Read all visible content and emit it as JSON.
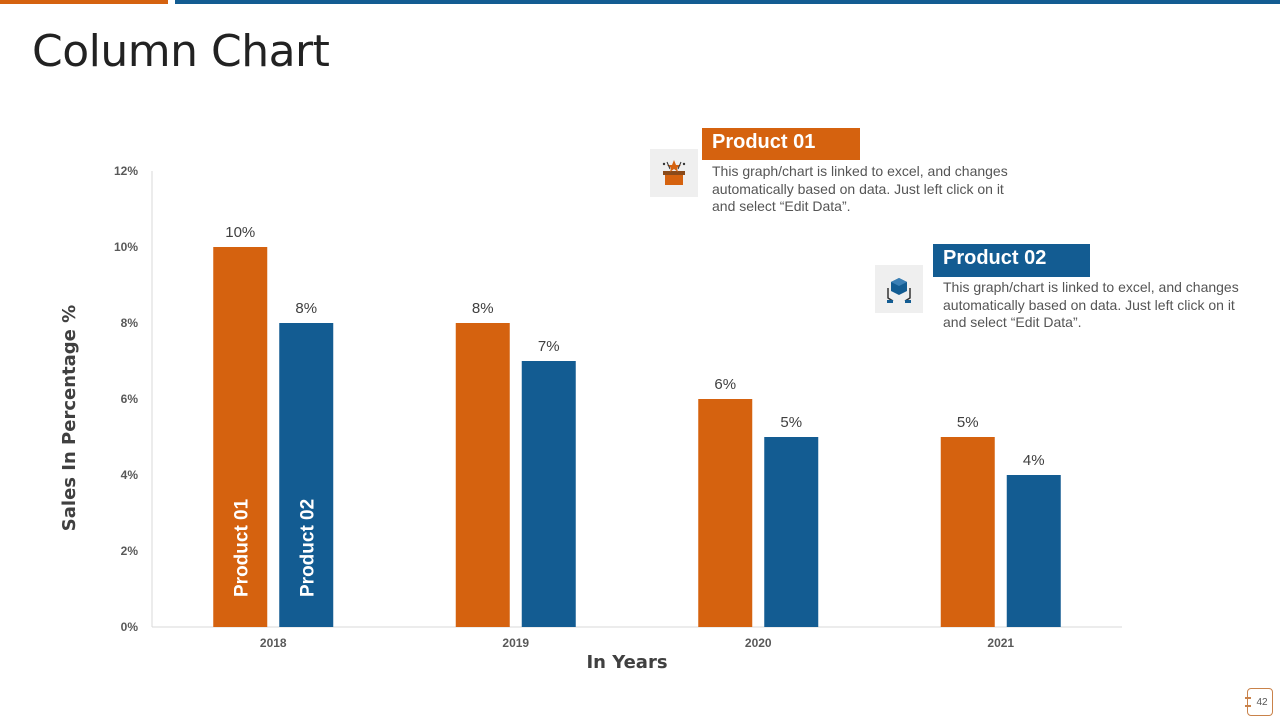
{
  "header": {
    "title": "Column Chart"
  },
  "colors": {
    "product01": "#d5620f",
    "product02": "#135c92",
    "axis": "#d9d9d9",
    "tick_text": "#595959"
  },
  "callouts": [
    {
      "title": "Product 01",
      "icon": "gift-box-icon",
      "text": "This graph/chart is linked to excel, and changes automatically based on data. Just left click on it and select “Edit Data”."
    },
    {
      "title": "Product 02",
      "icon": "hands-holding-box-icon",
      "text": "This graph/chart is linked to excel, and changes automatically based on data. Just left click on it and select “Edit Data”."
    }
  ],
  "page_number": "42",
  "chart_data": {
    "type": "bar",
    "title": "",
    "xlabel": "In Years",
    "ylabel": "Sales In Percentage %",
    "categories": [
      "2018",
      "2019",
      "2020",
      "2021"
    ],
    "series": [
      {
        "name": "Product 01",
        "values": [
          10,
          8,
          6,
          5
        ],
        "labels": [
          "10%",
          "8%",
          "6%",
          "5%"
        ]
      },
      {
        "name": "Product 02",
        "values": [
          8,
          7,
          5,
          4
        ],
        "labels": [
          "8%",
          "7%",
          "5%",
          "4%"
        ]
      }
    ],
    "ylim": [
      0,
      12
    ],
    "yticks": [
      0,
      2,
      4,
      6,
      8,
      10,
      12
    ],
    "ytick_labels": [
      "0%",
      "2%",
      "4%",
      "6%",
      "8%",
      "10%",
      "12%"
    ],
    "grid": false,
    "legend": "in-bar labels on first category"
  }
}
